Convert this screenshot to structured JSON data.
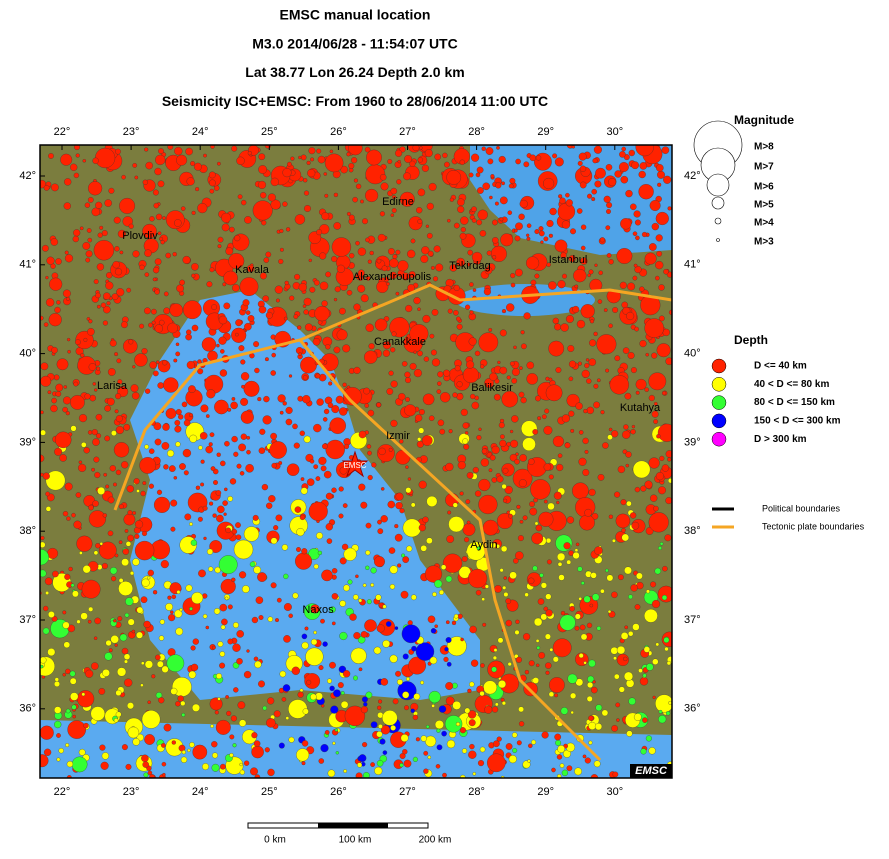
{
  "header": {
    "lines": [
      "EMSC manual location",
      "M3.0  2014/06/28 - 11:54:07 UTC",
      "Lat 38.77    Lon  26.24     Depth  2.0 km",
      "Seismicity ISC+EMSC: From 1960 to 28/06/2014 11:00 UTC"
    ]
  },
  "map": {
    "lon_labels": [
      "22°",
      "23°",
      "24°",
      "25°",
      "26°",
      "27°",
      "28°",
      "29°",
      "30°"
    ],
    "lat_labels": [
      "42°",
      "41°",
      "40°",
      "39°",
      "38°",
      "37°",
      "36°"
    ],
    "places": [
      "Plovdiv",
      "Edirne",
      "Kavala",
      "Alexandroupolis",
      "Tekirdag",
      "Istanbul",
      "Canakkale",
      "Larisa",
      "Balikesir",
      "Kutahya",
      "Izmir",
      "Aydin",
      "Naxos"
    ],
    "epicenter_label": "EMSC",
    "badge": "EMSC"
  },
  "magnitude_legend": {
    "title": "Magnitude",
    "items": [
      "M>8",
      "M>7",
      "M>6",
      "M>5",
      "M>4",
      "M>3"
    ]
  },
  "depth_legend": {
    "title": "Depth",
    "items": [
      {
        "label": "D <= 40 km",
        "color": "#ff2200"
      },
      {
        "label": "40 < D <= 80 km",
        "color": "#ffff00"
      },
      {
        "label": "80 < D <= 150 km",
        "color": "#33ff33"
      },
      {
        "label": "150 < D <= 300 km",
        "color": "#0000ff"
      },
      {
        "label": "D > 300 km",
        "color": "#ff00ff"
      }
    ]
  },
  "lines_legend": [
    {
      "label": "Political boundaries",
      "color": "#000000"
    },
    {
      "label": "Tectonic plate boundaries",
      "color": "#f5a623"
    }
  ],
  "scale_bar": [
    "0 km",
    "100 km",
    "200 km"
  ]
}
